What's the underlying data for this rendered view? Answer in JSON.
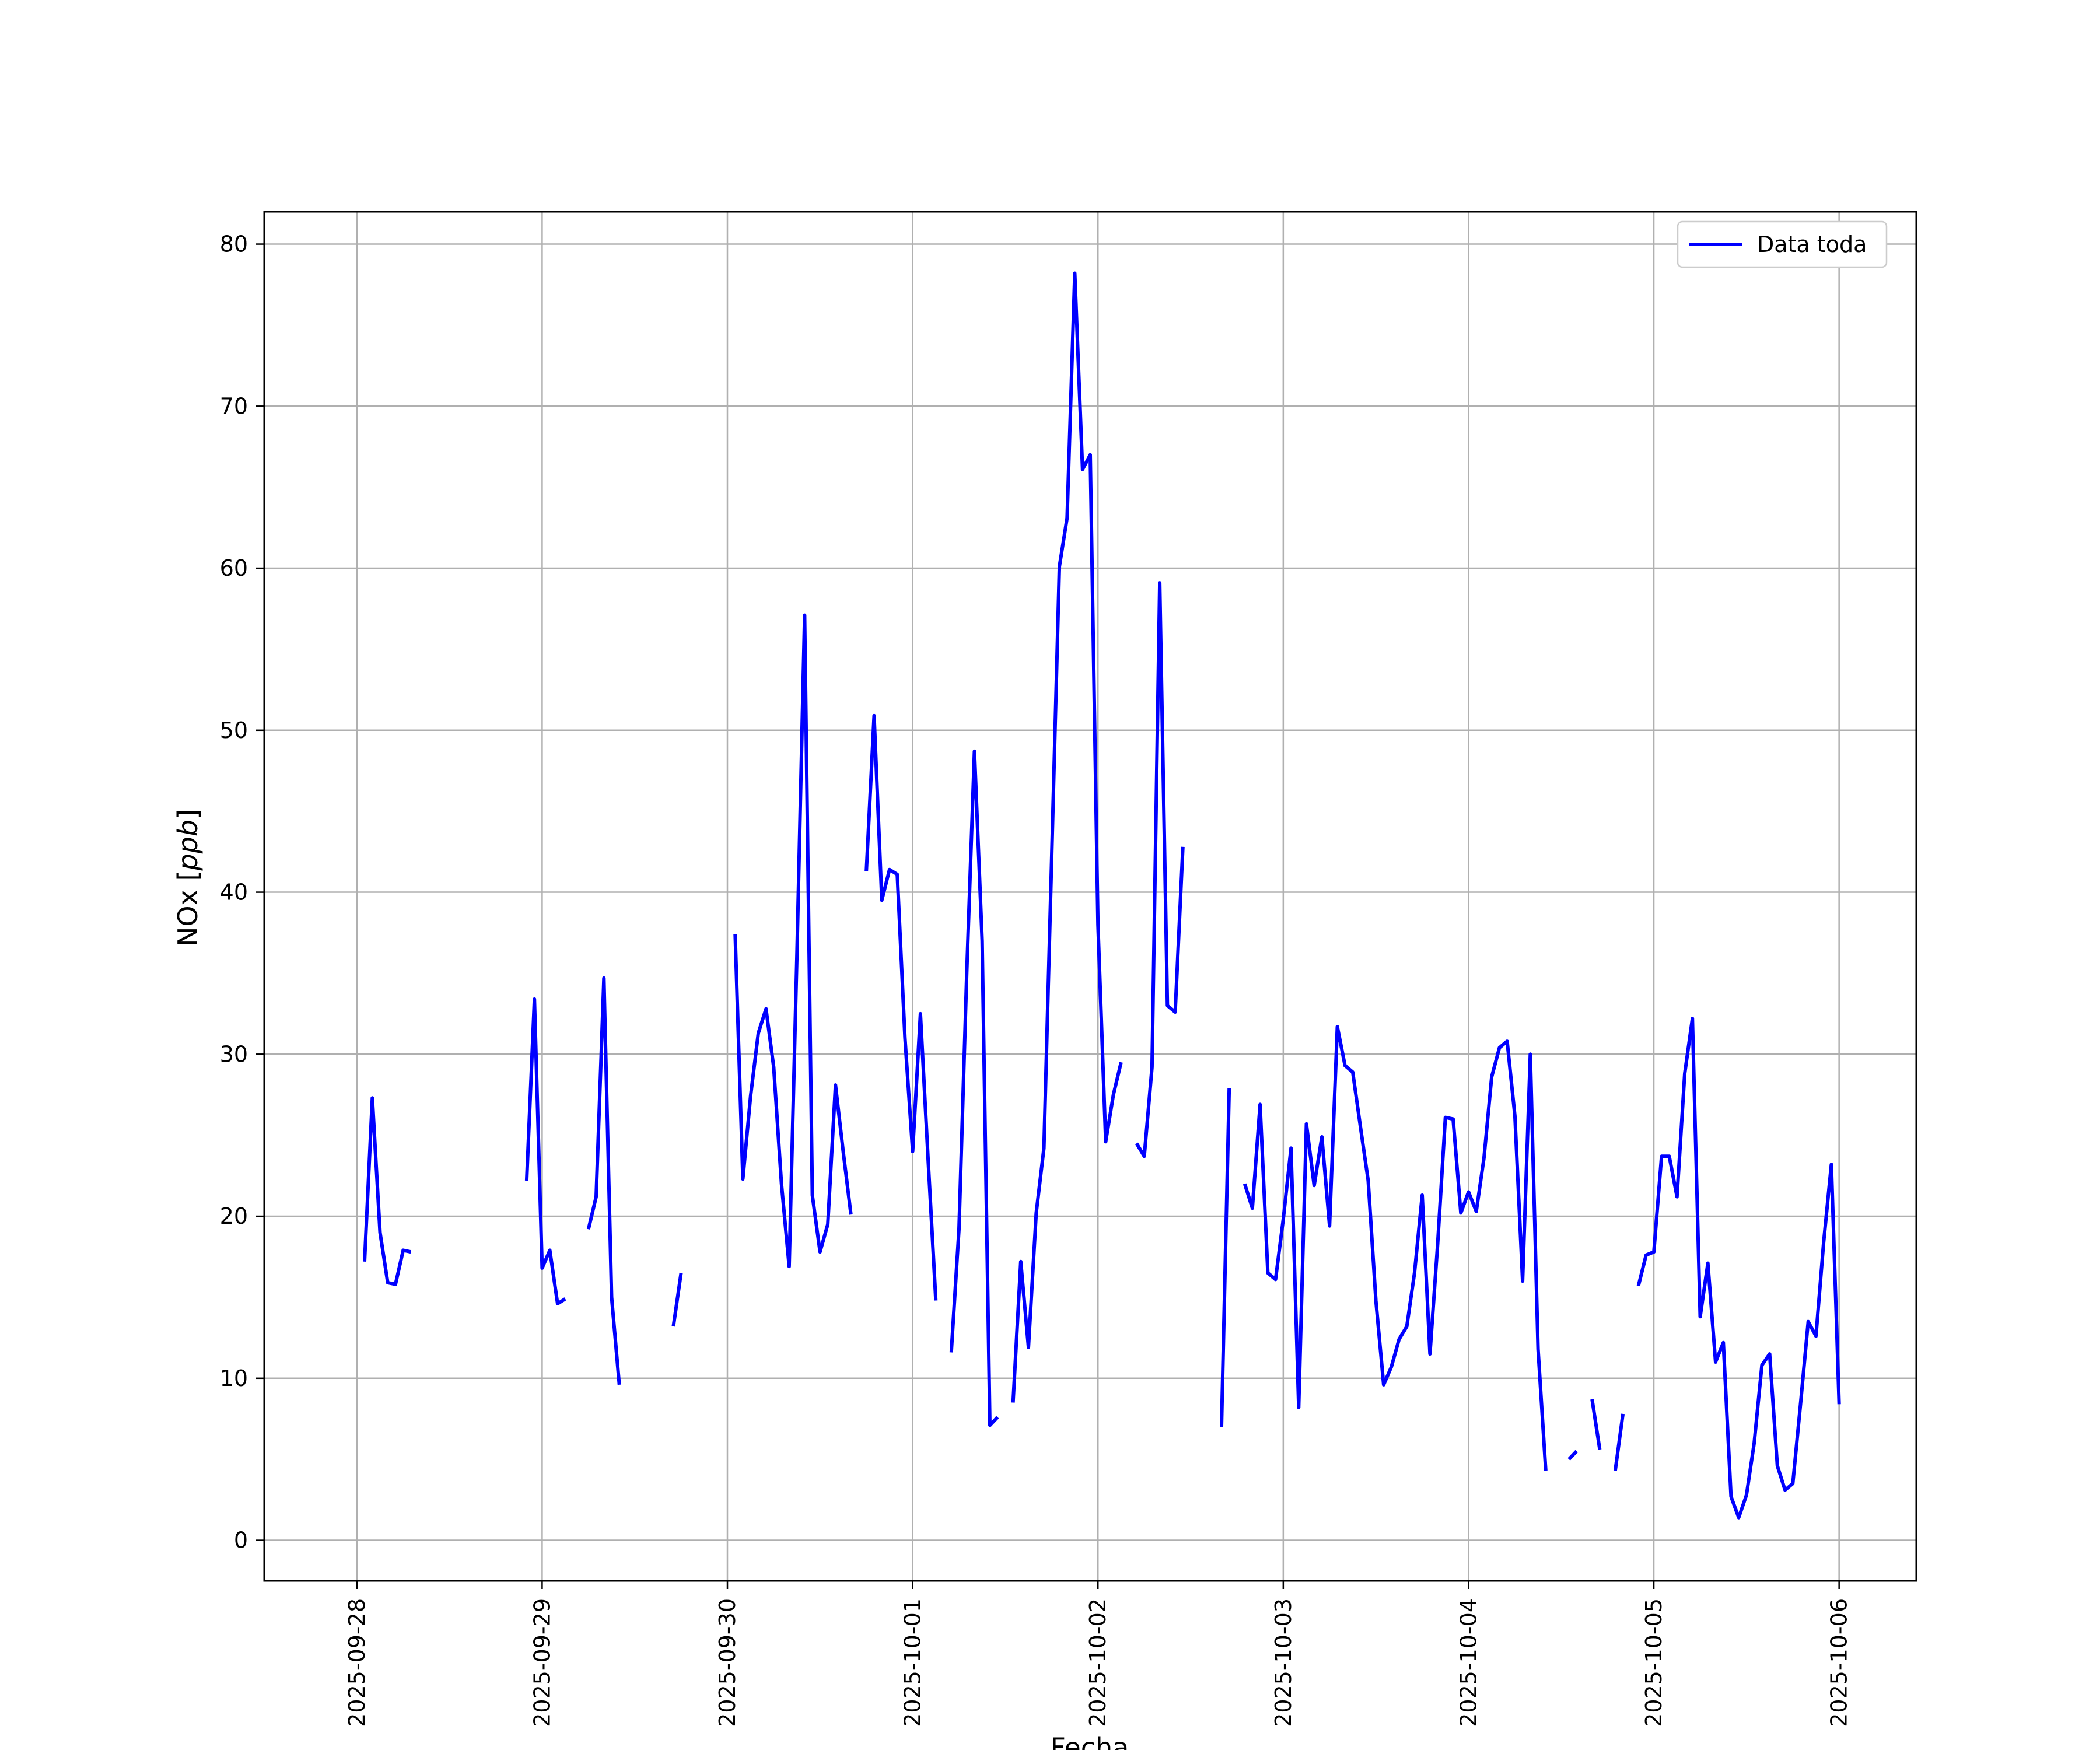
{
  "colors": {
    "series": "#0000ff",
    "grid": "#b0b0b0",
    "axes": "#000000",
    "background": "#ffffff"
  },
  "chart_data": {
    "type": "line",
    "title": "",
    "xlabel": "Fecha",
    "ylabel": "NOx [ppb]",
    "ylabel_parts": {
      "prefix": "NOx [",
      "unit": "ppb",
      "suffix": "]"
    },
    "xlim": [
      "2025-09-27T12:00",
      "2025-10-06T10:00"
    ],
    "ylim": [
      -2.5,
      82
    ],
    "grid": true,
    "legend_position": "top-right",
    "x_ticks": [
      "2025-09-28",
      "2025-09-29",
      "2025-09-30",
      "2025-10-01",
      "2025-10-02",
      "2025-10-03",
      "2025-10-04",
      "2025-10-05",
      "2025-10-06"
    ],
    "y_ticks": [
      0,
      10,
      20,
      30,
      40,
      50,
      60,
      70,
      80
    ],
    "series": [
      {
        "name": "Data toda",
        "color": "#0000ff",
        "segments": [
          [
            [
              "2025-09-28T01:00",
              17.2
            ],
            [
              "2025-09-28T02:00",
              27.3
            ],
            [
              "2025-09-28T03:00",
              19.0
            ],
            [
              "2025-09-28T04:00",
              15.9
            ],
            [
              "2025-09-28T05:00",
              15.8
            ],
            [
              "2025-09-28T06:00",
              17.9
            ],
            [
              "2025-09-28T07:00",
              17.8
            ]
          ],
          [
            [
              "2025-09-28T22:00",
              22.2
            ],
            [
              "2025-09-28T23:00",
              33.4
            ],
            [
              "2025-09-29T00:00",
              16.8
            ],
            [
              "2025-09-29T01:00",
              17.9
            ],
            [
              "2025-09-29T02:00",
              14.6
            ],
            [
              "2025-09-29T03:00",
              14.9
            ]
          ],
          [
            [
              "2025-09-29T06:00",
              19.2
            ],
            [
              "2025-09-29T07:00",
              21.2
            ],
            [
              "2025-09-29T08:00",
              34.7
            ],
            [
              "2025-09-29T09:00",
              15.0
            ],
            [
              "2025-09-29T10:00",
              9.6
            ]
          ],
          [
            [
              "2025-09-29T17:00",
              13.2
            ],
            [
              "2025-09-29T18:00",
              16.5
            ]
          ],
          [
            [
              "2025-09-30T01:00",
              37.4
            ],
            [
              "2025-09-30T02:00",
              22.3
            ],
            [
              "2025-09-30T03:00",
              27.4
            ],
            [
              "2025-09-30T04:00",
              31.3
            ],
            [
              "2025-09-30T05:00",
              32.8
            ],
            [
              "2025-09-30T06:00",
              29.2
            ],
            [
              "2025-09-30T07:00",
              22.0
            ],
            [
              "2025-09-30T08:00",
              16.9
            ],
            [
              "2025-09-30T09:00",
              36.0
            ],
            [
              "2025-09-30T10:00",
              57.1
            ],
            [
              "2025-09-30T11:00",
              21.3
            ],
            [
              "2025-09-30T12:00",
              17.8
            ],
            [
              "2025-09-30T13:00",
              19.5
            ],
            [
              "2025-09-30T14:00",
              28.1
            ],
            [
              "2025-09-30T15:00",
              24.0
            ],
            [
              "2025-09-30T16:00",
              20.1
            ]
          ],
          [
            [
              "2025-09-30T18:00",
              41.3
            ],
            [
              "2025-09-30T19:00",
              50.9
            ],
            [
              "2025-09-30T20:00",
              39.5
            ],
            [
              "2025-09-30T21:00",
              41.4
            ],
            [
              "2025-09-30T22:00",
              41.1
            ],
            [
              "2025-09-30T23:00",
              31.0
            ],
            [
              "2025-10-01T00:00",
              24.0
            ],
            [
              "2025-10-01T01:00",
              32.5
            ],
            [
              "2025-10-01T02:00",
              23.5
            ],
            [
              "2025-10-01T03:00",
              14.8
            ]
          ],
          [
            [
              "2025-10-01T05:00",
              11.6
            ],
            [
              "2025-10-01T06:00",
              19.2
            ],
            [
              "2025-10-01T07:00",
              35.0
            ],
            [
              "2025-10-01T08:00",
              48.7
            ],
            [
              "2025-10-01T09:00",
              37.0
            ],
            [
              "2025-10-01T10:00",
              7.1
            ],
            [
              "2025-10-01T11:00",
              7.6
            ]
          ],
          [
            [
              "2025-10-01T13:00",
              8.5
            ],
            [
              "2025-10-01T14:00",
              17.2
            ],
            [
              "2025-10-01T15:00",
              11.9
            ],
            [
              "2025-10-01T16:00",
              20.2
            ],
            [
              "2025-10-01T17:00",
              24.2
            ],
            [
              "2025-10-01T18:00",
              42.0
            ],
            [
              "2025-10-01T19:00",
              60.1
            ],
            [
              "2025-10-01T20:00",
              63.1
            ],
            [
              "2025-10-01T21:00",
              78.2
            ],
            [
              "2025-10-01T22:00",
              66.1
            ],
            [
              "2025-10-01T23:00",
              67.0
            ],
            [
              "2025-10-02T00:00",
              38.0
            ],
            [
              "2025-10-02T01:00",
              24.6
            ],
            [
              "2025-10-02T02:00",
              27.5
            ],
            [
              "2025-10-02T03:00",
              29.5
            ]
          ],
          [
            [
              "2025-10-02T05:00",
              24.5
            ],
            [
              "2025-10-02T06:00",
              23.7
            ],
            [
              "2025-10-02T07:00",
              29.2
            ],
            [
              "2025-10-02T08:00",
              59.1
            ],
            [
              "2025-10-02T09:00",
              33.0
            ],
            [
              "2025-10-02T10:00",
              32.6
            ],
            [
              "2025-10-02T11:00",
              42.8
            ]
          ],
          [
            [
              "2025-10-02T16:00",
              7.0
            ],
            [
              "2025-10-02T17:00",
              27.9
            ]
          ],
          [
            [
              "2025-10-02T19:00",
              22.0
            ],
            [
              "2025-10-02T20:00",
              20.5
            ],
            [
              "2025-10-02T21:00",
              26.9
            ],
            [
              "2025-10-02T22:00",
              16.5
            ],
            [
              "2025-10-02T23:00",
              16.1
            ],
            [
              "2025-10-03T00:00",
              19.8
            ],
            [
              "2025-10-03T01:00",
              24.2
            ],
            [
              "2025-10-03T02:00",
              8.2
            ],
            [
              "2025-10-03T03:00",
              25.7
            ],
            [
              "2025-10-03T04:00",
              21.9
            ],
            [
              "2025-10-03T05:00",
              24.9
            ],
            [
              "2025-10-03T06:00",
              19.4
            ],
            [
              "2025-10-03T07:00",
              31.7
            ],
            [
              "2025-10-03T08:00",
              29.3
            ],
            [
              "2025-10-03T09:00",
              28.9
            ],
            [
              "2025-10-03T10:00",
              25.5
            ],
            [
              "2025-10-03T11:00",
              22.2
            ],
            [
              "2025-10-03T12:00",
              14.8
            ],
            [
              "2025-10-03T13:00",
              9.6
            ],
            [
              "2025-10-03T14:00",
              10.7
            ],
            [
              "2025-10-03T15:00",
              12.4
            ],
            [
              "2025-10-03T16:00",
              13.2
            ],
            [
              "2025-10-03T17:00",
              16.5
            ],
            [
              "2025-10-03T18:00",
              21.3
            ],
            [
              "2025-10-03T19:00",
              11.5
            ],
            [
              "2025-10-03T20:00",
              18.3
            ],
            [
              "2025-10-03T21:00",
              26.1
            ],
            [
              "2025-10-03T22:00",
              26.0
            ],
            [
              "2025-10-03T23:00",
              20.2
            ],
            [
              "2025-10-04T00:00",
              21.5
            ],
            [
              "2025-10-04T01:00",
              20.3
            ],
            [
              "2025-10-04T02:00",
              23.6
            ],
            [
              "2025-10-04T03:00",
              28.6
            ],
            [
              "2025-10-04T04:00",
              30.4
            ],
            [
              "2025-10-04T05:00",
              30.8
            ],
            [
              "2025-10-04T06:00",
              26.2
            ],
            [
              "2025-10-04T07:00",
              16.0
            ],
            [
              "2025-10-04T08:00",
              30.0
            ],
            [
              "2025-10-04T09:00",
              11.8
            ],
            [
              "2025-10-04T10:00",
              4.3
            ]
          ],
          [
            [
              "2025-10-04T13:00",
              5.0
            ],
            [
              "2025-10-04T14:00",
              5.5
            ]
          ],
          [
            [
              "2025-10-04T16:00",
              8.7
            ],
            [
              "2025-10-04T17:00",
              5.6
            ]
          ],
          [
            [
              "2025-10-04T19:00",
              4.3
            ],
            [
              "2025-10-04T20:00",
              7.8
            ]
          ],
          [
            [
              "2025-10-04T22:00",
              15.7
            ],
            [
              "2025-10-04T23:00",
              17.6
            ],
            [
              "2025-10-05T00:00",
              17.8
            ],
            [
              "2025-10-05T01:00",
              23.7
            ],
            [
              "2025-10-05T02:00",
              23.7
            ],
            [
              "2025-10-05T03:00",
              21.2
            ],
            [
              "2025-10-05T04:00",
              28.8
            ],
            [
              "2025-10-05T05:00",
              32.2
            ],
            [
              "2025-10-05T06:00",
              13.8
            ],
            [
              "2025-10-05T07:00",
              17.1
            ],
            [
              "2025-10-05T08:00",
              11.0
            ],
            [
              "2025-10-05T09:00",
              12.2
            ],
            [
              "2025-10-05T10:00",
              2.7
            ],
            [
              "2025-10-05T11:00",
              1.4
            ],
            [
              "2025-10-05T12:00",
              2.8
            ],
            [
              "2025-10-05T13:00",
              6.0
            ],
            [
              "2025-10-05T14:00",
              10.8
            ],
            [
              "2025-10-05T15:00",
              11.5
            ],
            [
              "2025-10-05T16:00",
              4.6
            ],
            [
              "2025-10-05T17:00",
              3.1
            ],
            [
              "2025-10-05T18:00",
              3.5
            ],
            [
              "2025-10-05T19:00",
              8.4
            ],
            [
              "2025-10-05T20:00",
              13.5
            ],
            [
              "2025-10-05T21:00",
              12.6
            ],
            [
              "2025-10-05T22:00",
              18.4
            ],
            [
              "2025-10-05T23:00",
              23.2
            ],
            [
              "2025-10-06T00:00",
              8.4
            ]
          ]
        ]
      }
    ]
  }
}
